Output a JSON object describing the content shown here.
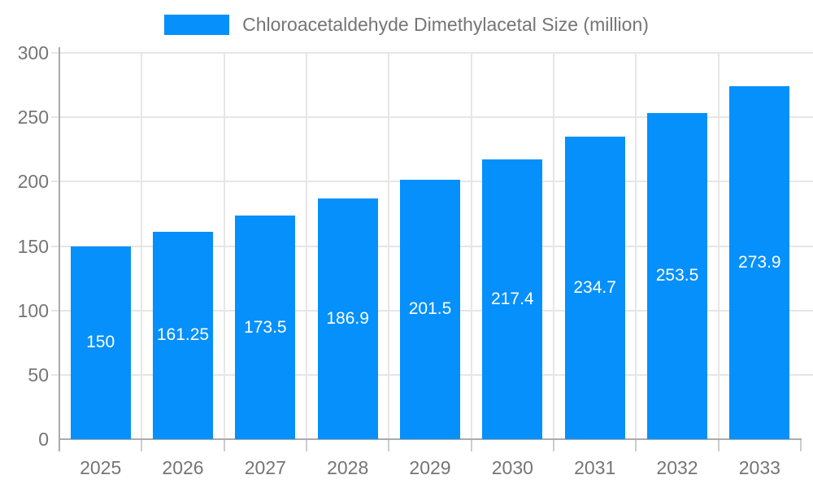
{
  "chart_data": {
    "type": "bar",
    "title": "Chloroacetaldehyde Dimethylacetal Size (million)",
    "categories": [
      "2025",
      "2026",
      "2027",
      "2028",
      "2029",
      "2030",
      "2031",
      "2032",
      "2033"
    ],
    "values": [
      150,
      161.25,
      173.5,
      186.9,
      201.5,
      217.4,
      234.7,
      253.5,
      273.9
    ],
    "value_labels": [
      "150",
      "161.25",
      "173.5",
      "186.9",
      "201.5",
      "217.4",
      "234.7",
      "253.5",
      "273.9"
    ],
    "xlabel": "",
    "ylabel": "",
    "ylim": [
      0,
      300
    ],
    "yticks": [
      0,
      50,
      100,
      150,
      200,
      250,
      300
    ],
    "grid": true,
    "legend_position": "top-center",
    "colors": {
      "bar": "#0590fb",
      "bar_label": "#ffffff",
      "axis_text": "#757575",
      "axis_line": "#ababab",
      "category_tick": "#cccccc",
      "gridline": "#e6e6e6",
      "background": "#ffffff"
    }
  }
}
